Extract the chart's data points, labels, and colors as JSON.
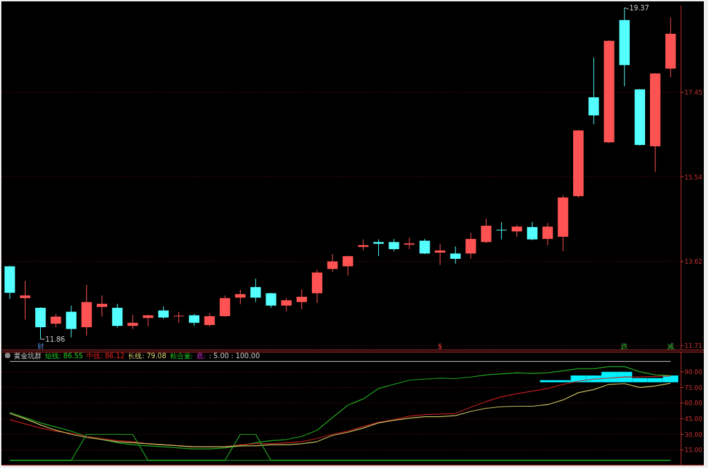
{
  "chart_data": [
    {
      "type": "candlestick",
      "categories": [
        null,
        null,
        null,
        null,
        null,
        null,
        null,
        null,
        null,
        null,
        null,
        null,
        null,
        null,
        null,
        null,
        null,
        null,
        null,
        null,
        null,
        null,
        null,
        null,
        null,
        null,
        null,
        null,
        null,
        null,
        null,
        null,
        null,
        null,
        null,
        null,
        null,
        null,
        null,
        null,
        null,
        null,
        null,
        null
      ],
      "ohlc": [
        [
          13.51,
          13.52,
          12.77,
          12.91
        ],
        [
          12.79,
          13.18,
          12.3,
          12.85
        ],
        [
          12.57,
          12.58,
          11.86,
          12.13
        ],
        [
          12.21,
          12.43,
          12.13,
          12.37
        ],
        [
          12.48,
          12.62,
          11.9,
          12.09
        ],
        [
          12.13,
          13.09,
          11.94,
          12.7
        ],
        [
          12.59,
          12.85,
          12.37,
          12.66
        ],
        [
          12.57,
          12.66,
          12.12,
          12.16
        ],
        [
          12.16,
          12.41,
          12.09,
          12.23
        ],
        [
          12.34,
          12.41,
          12.15,
          12.4
        ],
        [
          12.51,
          12.6,
          12.32,
          12.35
        ],
        [
          12.38,
          12.48,
          12.23,
          12.39
        ],
        [
          12.4,
          12.43,
          12.16,
          12.23
        ],
        [
          12.18,
          12.45,
          12.15,
          12.38
        ],
        [
          12.38,
          12.85,
          12.37,
          12.79
        ],
        [
          12.8,
          12.98,
          12.65,
          12.88
        ],
        [
          13.04,
          13.23,
          12.7,
          12.8
        ],
        [
          12.9,
          12.91,
          12.57,
          12.62
        ],
        [
          12.62,
          12.79,
          12.49,
          12.74
        ],
        [
          12.7,
          12.99,
          12.54,
          12.82
        ],
        [
          12.9,
          13.43,
          12.68,
          13.37
        ],
        [
          13.45,
          13.79,
          13.38,
          13.62
        ],
        [
          13.51,
          13.75,
          13.3,
          13.74
        ],
        [
          13.95,
          14.12,
          13.87,
          13.99
        ],
        [
          14.06,
          14.12,
          13.74,
          14.02
        ],
        [
          14.06,
          14.13,
          13.85,
          13.9
        ],
        [
          14.0,
          14.16,
          13.9,
          14.03
        ],
        [
          14.09,
          14.13,
          13.79,
          13.8
        ],
        [
          13.82,
          14.02,
          13.54,
          13.87
        ],
        [
          13.8,
          13.96,
          13.57,
          13.68
        ],
        [
          13.8,
          14.27,
          13.68,
          14.13
        ],
        [
          14.06,
          14.59,
          14.04,
          14.43
        ],
        [
          14.34,
          14.51,
          14.12,
          14.33
        ],
        [
          14.3,
          14.45,
          14.18,
          14.41
        ],
        [
          14.4,
          14.52,
          14.1,
          14.12
        ],
        [
          14.13,
          14.49,
          13.99,
          14.41
        ],
        [
          14.18,
          15.12,
          13.85,
          15.07
        ],
        [
          15.1,
          16.6,
          15.07,
          16.59
        ],
        [
          17.34,
          18.24,
          16.73,
          16.93
        ],
        [
          16.32,
          18.63,
          16.3,
          18.62
        ],
        [
          19.09,
          19.37,
          17.59,
          18.07
        ],
        [
          17.52,
          17.53,
          16.25,
          16.26
        ],
        [
          16.23,
          17.89,
          15.65,
          17.88
        ],
        [
          17.99,
          19.15,
          17.79,
          18.78
        ]
      ],
      "colors": [
        "#54ffff",
        "#ff5353",
        "#54ffff",
        "#ff5353",
        "#54ffff",
        "#ff5353",
        "#ff5353",
        "#54ffff",
        "#ff5353",
        "#ff5353",
        "#54ffff",
        "#ff5353",
        "#54ffff",
        "#ff5353",
        "#ff5353",
        "#ff5353",
        "#54ffff",
        "#54ffff",
        "#ff5353",
        "#ff5353",
        "#ff5353",
        "#ff5353",
        "#ff5353",
        "#ff5353",
        "#54ffff",
        "#54ffff",
        "#ff5353",
        "#54ffff",
        "#ff5353",
        "#54ffff",
        "#ff5353",
        "#ff5353",
        "#54ffff",
        "#ff5353",
        "#54ffff",
        "#ff5353",
        "#ff5353",
        "#ff5353",
        "#54ffff",
        "#ff5353",
        "#54ffff",
        "#54ffff",
        "#ff5353",
        "#ff5353"
      ],
      "ylim": [
        11.63,
        19.42
      ],
      "yticks": [
        11.71,
        13.62,
        15.54,
        17.45
      ],
      "grid": "y",
      "annotations": [
        "11.86",
        "19.37",
        "财",
        "$",
        "跌",
        "减"
      ]
    },
    {
      "type": "line",
      "title": "黄金坑群",
      "categories": [
        null,
        null,
        null,
        null,
        null,
        null,
        null,
        null,
        null,
        null,
        null,
        null,
        null,
        null,
        null,
        null,
        null,
        null,
        null,
        null,
        null,
        null,
        null,
        null,
        null,
        null,
        null,
        null,
        null,
        null,
        null,
        null,
        null,
        null,
        null,
        null,
        null,
        null,
        null,
        null,
        null,
        null,
        null,
        null
      ],
      "ylim": [
        1,
        109
      ],
      "yticks": [
        {
          "value": 15,
          "label": "15.00"
        },
        {
          "value": 30,
          "label": "30.00"
        },
        {
          "value": 45,
          "label": "45.00"
        },
        {
          "value": 60,
          "label": "60.00"
        },
        {
          "value": 75,
          "label": "75.00"
        },
        {
          "value": 90,
          "label": "90.00"
        }
      ],
      "grid": "y",
      "series": [
        {
          "color": "#22a822",
          "values": [
            51,
            46,
            41,
            37,
            33,
            28,
            25,
            22,
            20,
            19,
            18,
            17,
            16,
            16,
            17,
            19,
            22,
            24,
            25,
            28,
            34,
            46,
            58,
            64,
            74,
            78,
            82,
            83,
            84,
            83.5,
            85,
            87,
            88,
            89,
            88.5,
            89,
            91,
            93,
            93,
            95,
            95,
            90,
            87,
            86.55
          ]
        },
        {
          "color": "#c01c1c",
          "values": [
            44,
            40,
            36,
            33,
            31,
            28,
            26,
            24,
            23,
            21,
            20,
            19,
            18,
            18,
            18,
            20,
            21,
            21,
            22,
            23,
            26,
            30,
            33,
            37.5,
            41.5,
            44,
            47.5,
            49,
            49.5,
            50,
            56,
            61.5,
            66,
            69,
            71.5,
            74,
            78,
            81,
            83,
            84,
            85,
            85,
            85.5,
            86.12
          ]
        },
        {
          "color": "#c8c060",
          "values": [
            50,
            45,
            39,
            34,
            30,
            27,
            25,
            23,
            22,
            21,
            20,
            19,
            18,
            18,
            18,
            19,
            19,
            20,
            20,
            21,
            23,
            29,
            32,
            36,
            41,
            43.5,
            45.5,
            47,
            47,
            48,
            52,
            55,
            56.5,
            57,
            57,
            58.5,
            63,
            70,
            73,
            78,
            78.7,
            75,
            76.5,
            79.08
          ]
        },
        {
          "type": "bar",
          "color": "#00f0ff",
          "base": [
            null,
            null,
            null,
            null,
            null,
            null,
            null,
            null,
            null,
            null,
            null,
            null,
            null,
            null,
            null,
            null,
            null,
            null,
            null,
            null,
            null,
            null,
            null,
            null,
            null,
            null,
            null,
            null,
            null,
            null,
            null,
            null,
            null,
            null,
            null,
            80,
            80,
            80,
            80,
            80,
            80,
            80,
            80,
            80
          ],
          "values": [
            null,
            null,
            null,
            null,
            null,
            null,
            null,
            null,
            null,
            null,
            null,
            null,
            null,
            null,
            null,
            null,
            null,
            null,
            null,
            null,
            null,
            null,
            null,
            null,
            null,
            null,
            null,
            null,
            null,
            null,
            null,
            null,
            null,
            null,
            null,
            2,
            2,
            6.5,
            6.5,
            10,
            10,
            4,
            4,
            6.5
          ]
        },
        {
          "color": "#22a822",
          "values": [
            5,
            5,
            5,
            5,
            5,
            30,
            30,
            30,
            30,
            5,
            5,
            5,
            5,
            5,
            5,
            30,
            30,
            5,
            5,
            5,
            5,
            5,
            5,
            5,
            5,
            5,
            5,
            5,
            5,
            5,
            5,
            5,
            5,
            5,
            5,
            5,
            5,
            5,
            5,
            5,
            5,
            5,
            5,
            5
          ]
        }
      ],
      "ref_lines": [
        {
          "axis": "y",
          "value": 100,
          "color": "#c8c8c8"
        },
        {
          "axis": "y",
          "value": 5,
          "color": "#22a822"
        }
      ],
      "annotations": [
        "短线: 86.55",
        "中线: 86.12",
        "长线: 79.08",
        "粘合量:",
        "底:",
        ": 5.00 : 100.00"
      ]
    }
  ]
}
